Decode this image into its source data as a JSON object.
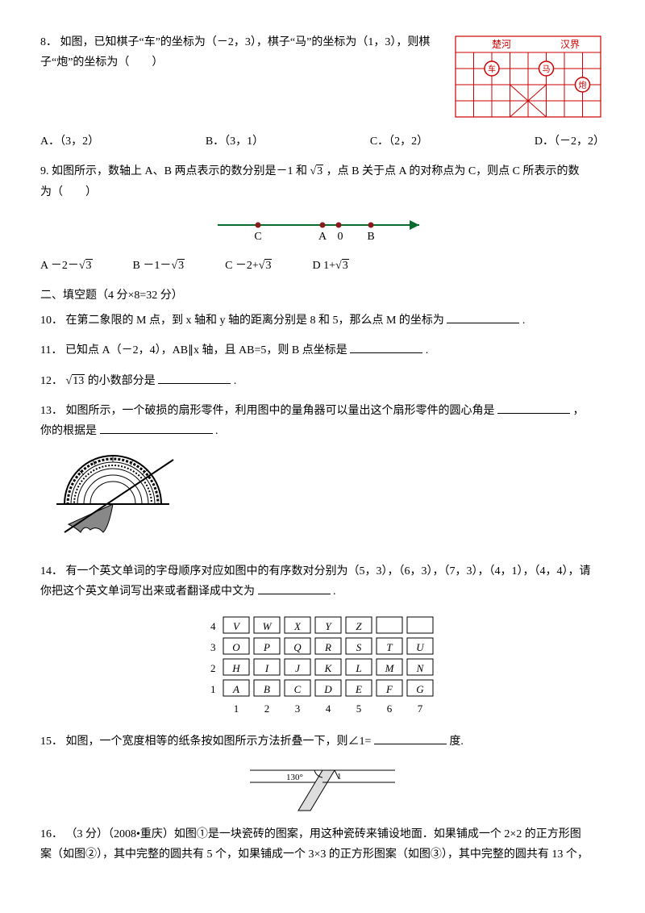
{
  "q8": {
    "num": "8．",
    "text": "如图，已知棋子“车”的坐标为（－2，3），棋子“马”的坐标为（1，3），则棋子“炮”的坐标为（　　）",
    "optA": "A．（3，2）",
    "optB": "B．（3，1）",
    "optC": "C．（2，2）",
    "optD": "D．（－2，2）",
    "chuhe": "楚河",
    "hanjie": "汉界",
    "che": "车",
    "ma": "马",
    "pao": "炮"
  },
  "q9": {
    "num": "9.",
    "text_a": "如图所示，数轴上 A、B 两点表示的数分别是－1 和",
    "sqrt3": "3",
    "text_b": "，点 B 关于点 A 的对称点为 C，则点 C 所表示的数",
    "text_c": "为（　　）",
    "labelC": "C",
    "labelA": "A",
    "label0": "0",
    "labelB": "B",
    "optA_pre": "A  －2－",
    "optB_pre": "B  －1－",
    "optC_pre": "C  －2+",
    "optD_pre": "D  1+"
  },
  "section2": "二、填空题（4 分×8=32 分）",
  "q10": {
    "num": "10．",
    "text": "在第二象限的 M 点，到 x 轴和 y 轴的距离分别是 8 和 5，那么点 M 的坐标为",
    "tail": "."
  },
  "q11": {
    "num": "11．",
    "text": "已知点 A（－2，4），AB∥x 轴，且 AB=5，则 B 点坐标是",
    "tail": "."
  },
  "q12": {
    "num": "12．",
    "sqrt13": "13",
    "text": " 的小数部分是",
    "tail": "."
  },
  "q13": {
    "num": "13．",
    "text_a": "如图所示，一个破损的扇形零件，利用图中的量角器可以量出这个扇形零件的圆心角是",
    "text_b": "，",
    "text_c": "你的根据是",
    "tail": "."
  },
  "q14": {
    "num": "14．",
    "text_a": "有一个英文单词的字母顺序对应如图中的有序数对分别为（5，3），（6，3），（7，3），（4，1），（4，4），请",
    "text_b": "你把这个英文单词写出来或者翻译成中文为",
    "tail": ".",
    "grid": {
      "rows": [
        [
          "V",
          "W",
          "X",
          "Y",
          "Z",
          "",
          ""
        ],
        [
          "O",
          "P",
          "Q",
          "R",
          "S",
          "T",
          "U"
        ],
        [
          "H",
          "I",
          "J",
          "K",
          "L",
          "M",
          "N"
        ],
        [
          "A",
          "B",
          "C",
          "D",
          "E",
          "F",
          "G"
        ]
      ],
      "row_labels": [
        "4",
        "3",
        "2",
        "1"
      ],
      "col_labels": [
        "1",
        "2",
        "3",
        "4",
        "5",
        "6",
        "7"
      ]
    }
  },
  "q15": {
    "num": "15．",
    "text_a": "如图，一个宽度相等的纸条按如图所示方法折叠一下，则∠1=",
    "text_b": "度.",
    "angle": "130°",
    "one": "1"
  },
  "q16": {
    "num": "16．",
    "text_a": "（3 分）（2008•重庆）如图①是一块瓷砖的图案，用这种瓷砖来铺设地面．如果铺成一个 2×2 的正方形图",
    "text_b": "案（如图②），其中完整的圆共有 5 个，如果铺成一个 3×3 的正方形图案（如图③），其中完整的圆共有 13 个，"
  }
}
